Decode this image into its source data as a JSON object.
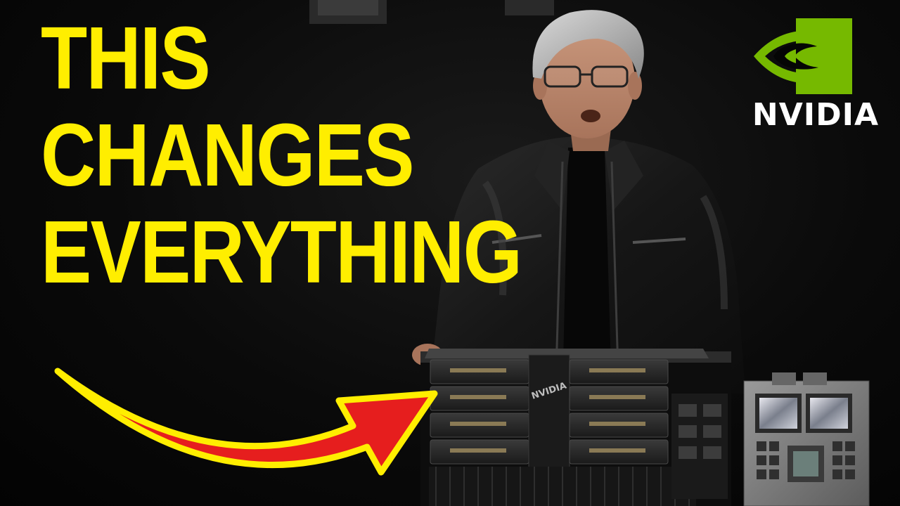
{
  "thumbnail": {
    "headline": [
      "THIS",
      "CHANGES",
      "EVERYTHING"
    ],
    "brand": {
      "name": "NVIDIA",
      "accent_color": "#76b900"
    },
    "hardware_label": "NVIDIA",
    "colors": {
      "headline": "#ffee00",
      "arrow": "#e61e1e",
      "arrow_outline": "#ffee00",
      "background": "#050505"
    }
  }
}
